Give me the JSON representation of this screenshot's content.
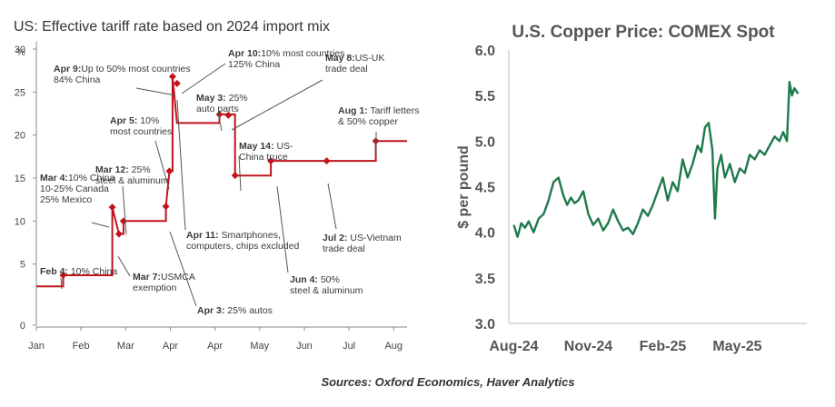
{
  "chart_data": [
    {
      "type": "line",
      "title": "US: Effective tariff rate based on 2024 import mix",
      "ylabel": "%",
      "xlabel": "",
      "ylim": [
        0,
        30
      ],
      "yticks": [
        0,
        5,
        10,
        15,
        20,
        25,
        30
      ],
      "xlim": [
        0,
        8.3
      ],
      "month_ticks": [
        "Jan",
        "Feb",
        "Mar",
        "Apr",
        "Apr",
        "May",
        "Jun",
        "Jul",
        "Aug"
      ],
      "month_tick_x": [
        0,
        1,
        2,
        3,
        4,
        5,
        6,
        7,
        8
      ],
      "grid": false,
      "series_color": "#c0141c",
      "step_points": [
        {
          "x": 0.0,
          "y": 2.4
        },
        {
          "x": 0.6,
          "y": 2.4
        },
        {
          "x": 0.6,
          "y": 3.7
        },
        {
          "x": 1.7,
          "y": 3.7
        },
        {
          "x": 1.7,
          "y": 11.6
        },
        {
          "x": 1.85,
          "y": 8.5
        },
        {
          "x": 1.95,
          "y": 8.5
        },
        {
          "x": 1.95,
          "y": 10.0
        },
        {
          "x": 2.9,
          "y": 10.0
        },
        {
          "x": 2.9,
          "y": 11.7
        },
        {
          "x": 2.98,
          "y": 15.8
        },
        {
          "x": 3.05,
          "y": 15.8
        },
        {
          "x": 3.05,
          "y": 26.8
        },
        {
          "x": 3.15,
          "y": 21.4
        },
        {
          "x": 4.1,
          "y": 21.4
        },
        {
          "x": 4.1,
          "y": 22.4
        },
        {
          "x": 4.45,
          "y": 22.4
        },
        {
          "x": 4.45,
          "y": 15.3
        },
        {
          "x": 5.25,
          "y": 15.3
        },
        {
          "x": 5.25,
          "y": 17.0
        },
        {
          "x": 7.6,
          "y": 17.0
        },
        {
          "x": 7.6,
          "y": 19.3
        },
        {
          "x": 8.3,
          "y": 19.3
        }
      ],
      "event_markers": [
        {
          "x": 0.6,
          "y": 3.7
        },
        {
          "x": 1.7,
          "y": 11.6
        },
        {
          "x": 1.85,
          "y": 8.5
        },
        {
          "x": 1.95,
          "y": 10.0
        },
        {
          "x": 2.9,
          "y": 11.7
        },
        {
          "x": 2.98,
          "y": 15.8
        },
        {
          "x": 3.05,
          "y": 26.8
        },
        {
          "x": 3.15,
          "y": 26.0
        },
        {
          "x": 4.1,
          "y": 22.4
        },
        {
          "x": 4.3,
          "y": 22.3
        },
        {
          "x": 4.45,
          "y": 15.3
        },
        {
          "x": 5.25,
          "y": 17.0
        },
        {
          "x": 6.5,
          "y": 17.0
        },
        {
          "x": 7.6,
          "y": 19.3
        }
      ],
      "annotations": [
        {
          "bold": "Feb 4:",
          "lines": [
            " 10% China"
          ]
        },
        {
          "bold": "Mar 4:",
          "lines": [
            "10% China",
            "10-25% Canada",
            "25% Mexico"
          ]
        },
        {
          "bold": "Mar 7:",
          "lines": [
            "USMCA",
            "exemption"
          ]
        },
        {
          "bold": "Mar 12:",
          "lines": [
            " 25%",
            "steel & aluminum"
          ]
        },
        {
          "bold": "Apr 3:",
          "lines": [
            " 25% autos"
          ]
        },
        {
          "bold": "Apr 5:",
          "lines": [
            " 10%",
            "most countries"
          ]
        },
        {
          "bold": "Apr 9:",
          "lines": [
            "Up to 50% most countries",
            "84% China"
          ]
        },
        {
          "bold": "Apr 10:",
          "lines": [
            "10% most countries",
            "125% China"
          ]
        },
        {
          "bold": "Apr 11:",
          "lines": [
            " Smartphones,",
            "computers, chips excluded"
          ]
        },
        {
          "bold": "May 3:",
          "lines": [
            " 25%",
            "auto parts"
          ]
        },
        {
          "bold": "May 8:",
          "lines": [
            "US-UK",
            "trade deal"
          ]
        },
        {
          "bold": "May 14:",
          "lines": [
            " US-",
            "China truce"
          ]
        },
        {
          "bold": "Jun 4:",
          "lines": [
            " 50%",
            "steel & aluminum"
          ]
        },
        {
          "bold": "Jul 2:",
          "lines": [
            " US-Vietnam",
            "trade deal"
          ]
        },
        {
          "bold": "Aug 1:",
          "lines": [
            " Tariff letters",
            "& 50% copper"
          ]
        }
      ]
    },
    {
      "type": "line",
      "title": "U.S. Copper Price: COMEX Spot",
      "ylabel": "$ per pound",
      "xlabel": "",
      "ylim": [
        3.0,
        6.0
      ],
      "yticks": [
        "3.0",
        "3.5",
        "4.0",
        "4.5",
        "5.0",
        "5.5",
        "6.0"
      ],
      "xticks": [
        "Aug-24",
        "Nov-24",
        "Feb-25",
        "May-25"
      ],
      "xtick_month_index": [
        0,
        3,
        6,
        9
      ],
      "xlim": [
        -0.2,
        11.8
      ],
      "grid": false,
      "series_color": "#1e7a4a",
      "series": [
        {
          "name": "COMEX Spot",
          "x": [
            0,
            0.15,
            0.3,
            0.45,
            0.6,
            0.8,
            1.0,
            1.2,
            1.4,
            1.6,
            1.8,
            2.0,
            2.15,
            2.3,
            2.45,
            2.6,
            2.8,
            3.0,
            3.2,
            3.4,
            3.6,
            3.8,
            4.0,
            4.2,
            4.4,
            4.6,
            4.8,
            5.0,
            5.2,
            5.4,
            5.6,
            5.8,
            6.0,
            6.2,
            6.4,
            6.6,
            6.8,
            7.0,
            7.2,
            7.4,
            7.55,
            7.7,
            7.85,
            8.0,
            8.1,
            8.2,
            8.35,
            8.5,
            8.7,
            8.9,
            9.1,
            9.3,
            9.5,
            9.7,
            9.9,
            10.1,
            10.3,
            10.5,
            10.7,
            10.85,
            11.0,
            11.1,
            11.2,
            11.3,
            11.45
          ],
          "values": [
            4.08,
            3.95,
            4.1,
            4.05,
            4.12,
            4.0,
            4.15,
            4.2,
            4.35,
            4.55,
            4.6,
            4.4,
            4.3,
            4.38,
            4.32,
            4.35,
            4.45,
            4.2,
            4.08,
            4.15,
            4.02,
            4.1,
            4.25,
            4.12,
            4.02,
            4.05,
            3.98,
            4.1,
            4.25,
            4.18,
            4.3,
            4.45,
            4.6,
            4.35,
            4.55,
            4.45,
            4.8,
            4.6,
            4.75,
            4.95,
            4.88,
            5.15,
            5.2,
            4.9,
            4.15,
            4.7,
            4.85,
            4.6,
            4.75,
            4.55,
            4.7,
            4.65,
            4.85,
            4.8,
            4.9,
            4.85,
            4.95,
            5.05,
            5.0,
            5.1,
            5.0,
            5.65,
            5.5,
            5.58,
            5.52
          ]
        }
      ]
    }
  ],
  "footer": {
    "source": "Sources: Oxford Economics, Haver Analytics"
  }
}
